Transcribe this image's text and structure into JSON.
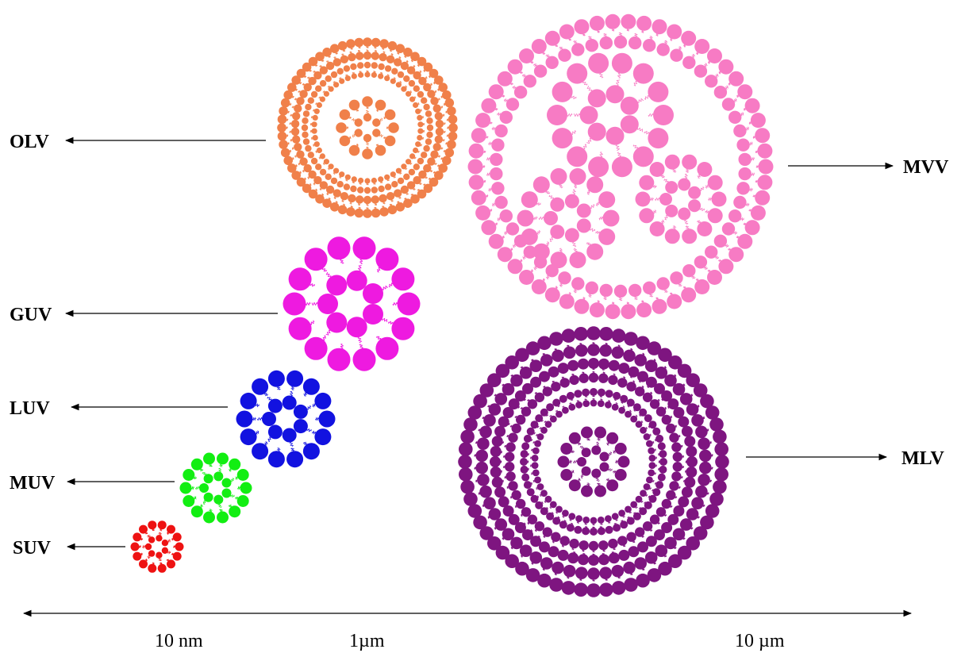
{
  "labels": {
    "olv": "OLV",
    "guv": "GUV",
    "luv": "LUV",
    "muv": "MUV",
    "suv": "SUV",
    "mvv": "MVV",
    "mlv": "MLV"
  },
  "scale": {
    "tick_10nm": "10 nm",
    "tick_1um": "1µm",
    "tick_10um": "10 µm"
  },
  "colors": {
    "olv": "#f0804a",
    "guv": "#ee1ae0",
    "luv": "#1212e0",
    "muv": "#12ee12",
    "suv": "#ee1212",
    "mvv": "#f77bc4",
    "mlv": "#7e1580",
    "axis": "#000000"
  }
}
